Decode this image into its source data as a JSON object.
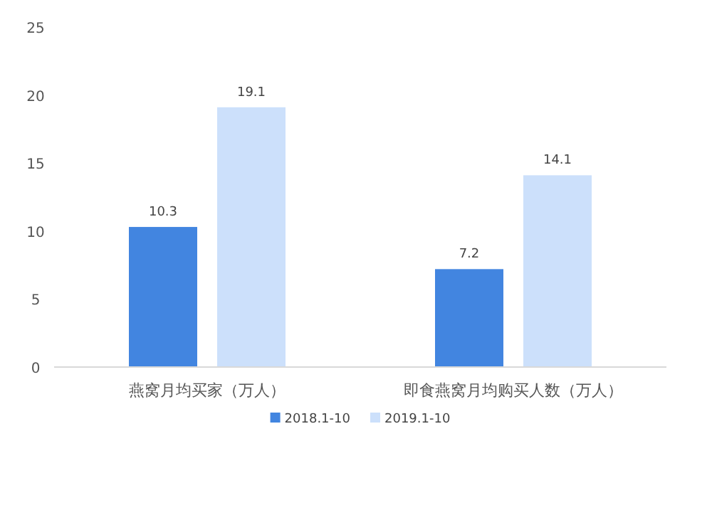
{
  "chart_data": {
    "type": "bar",
    "categories": [
      "燕窝月均买家（万人）",
      "即食燕窝月均购买人数（万人）"
    ],
    "series": [
      {
        "name": "2018.1-10",
        "color": "#4285e0",
        "values": [
          10.3,
          7.2
        ]
      },
      {
        "name": "2019.1-10",
        "color": "#cce0fb",
        "values": [
          19.1,
          14.1
        ]
      }
    ],
    "ylim": [
      0,
      25
    ],
    "yticks": [
      0,
      5,
      10,
      15,
      20,
      25
    ],
    "data_labels": true,
    "grid": false,
    "legend": "bottom"
  }
}
